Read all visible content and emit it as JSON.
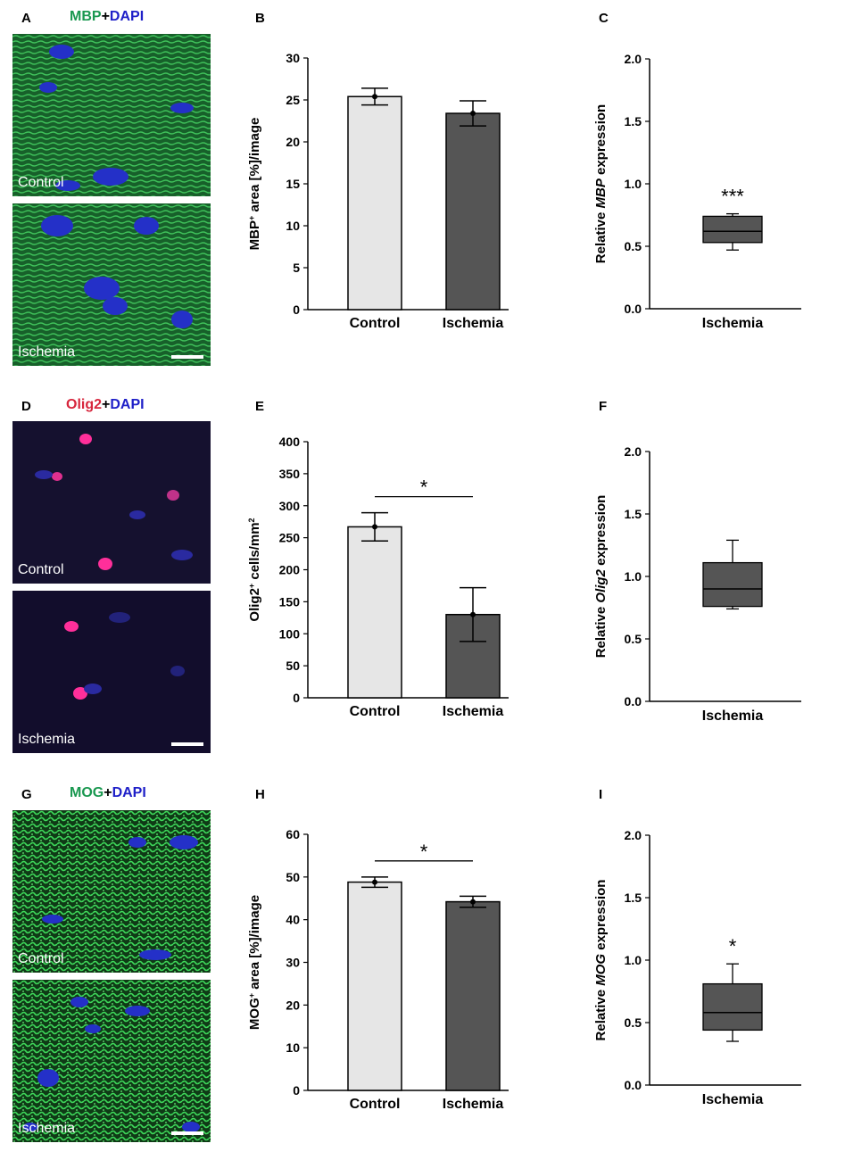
{
  "panels": {
    "A": {
      "letter": "A",
      "stain": {
        "marker": "MBP",
        "marker_color": "#1a9850",
        "plus": "+",
        "dapi": "DAPI"
      },
      "top_caption": "Control",
      "bottom_caption": "Ischemia",
      "tint": "#1e8f3e"
    },
    "D": {
      "letter": "D",
      "stain": {
        "marker": "Olig2",
        "marker_color": "#d7263d",
        "plus": "+",
        "dapi": "DAPI"
      },
      "top_caption": "Control",
      "bottom_caption": "Ischemia",
      "tint": "#1a1240"
    },
    "G": {
      "letter": "G",
      "stain": {
        "marker": "MOG",
        "marker_color": "#1a9850",
        "plus": "+",
        "dapi": "DAPI"
      },
      "top_caption": "Control",
      "bottom_caption": "Ischemia",
      "tint": "#1fa83a"
    },
    "B": {
      "letter": "B"
    },
    "C": {
      "letter": "C"
    },
    "E": {
      "letter": "E"
    },
    "F": {
      "letter": "F"
    },
    "H": {
      "letter": "H"
    },
    "I": {
      "letter": "I"
    }
  },
  "chart_data": [
    {
      "id": "B",
      "type": "bar",
      "categories": [
        "Control",
        "Ischemia"
      ],
      "values": [
        25.4,
        23.4
      ],
      "errors": [
        1.0,
        1.5
      ],
      "ylabel": "MBP+ area [%]/image",
      "ylim": [
        0,
        30
      ],
      "yticks": [
        0,
        5,
        10,
        15,
        20,
        25,
        30
      ],
      "significance": "",
      "colors": [
        "#e6e6e6",
        "#555555"
      ]
    },
    {
      "id": "C",
      "type": "box",
      "category": "Ischemia",
      "box": {
        "min": 0.47,
        "q1": 0.53,
        "median": 0.62,
        "q3": 0.74,
        "max": 0.76
      },
      "ylabel_prefix": "Relative ",
      "ylabel_gene": "MBP",
      "ylabel_suffix": " expression",
      "ylim": [
        0,
        2.0
      ],
      "yticks": [
        "0.0",
        "0.5",
        "1.0",
        "1.5",
        "2.0"
      ],
      "significance": "***"
    },
    {
      "id": "E",
      "type": "bar",
      "categories": [
        "Control",
        "Ischemia"
      ],
      "values": [
        267,
        130
      ],
      "errors": [
        22,
        42
      ],
      "ylabel": "Olig2+ cells/mm2",
      "ylim": [
        0,
        400
      ],
      "yticks": [
        0,
        50,
        100,
        150,
        200,
        250,
        300,
        350,
        400
      ],
      "significance": "*",
      "colors": [
        "#e6e6e6",
        "#555555"
      ]
    },
    {
      "id": "F",
      "type": "box",
      "category": "Ischemia",
      "box": {
        "min": 0.74,
        "q1": 0.76,
        "median": 0.9,
        "q3": 1.11,
        "max": 1.29
      },
      "ylabel_prefix": "Relative ",
      "ylabel_gene": "Olig2",
      "ylabel_suffix": " expression",
      "ylim": [
        0,
        2.0
      ],
      "yticks": [
        "0.0",
        "0.5",
        "1.0",
        "1.5",
        "2.0"
      ],
      "significance": ""
    },
    {
      "id": "H",
      "type": "bar",
      "categories": [
        "Control",
        "Ischemia"
      ],
      "values": [
        48.8,
        44.2
      ],
      "errors": [
        1.2,
        1.3
      ],
      "ylabel": "MOG+ area [%]/image",
      "ylim": [
        0,
        60
      ],
      "yticks": [
        0,
        10,
        20,
        30,
        40,
        50,
        60
      ],
      "significance": "*",
      "colors": [
        "#e6e6e6",
        "#555555"
      ]
    },
    {
      "id": "I",
      "type": "box",
      "category": "Ischemia",
      "box": {
        "min": 0.35,
        "q1": 0.44,
        "median": 0.58,
        "q3": 0.81,
        "max": 0.97
      },
      "ylabel_prefix": "Relative ",
      "ylabel_gene": "MOG",
      "ylabel_suffix": " expression",
      "ylim": [
        0,
        2.0
      ],
      "yticks": [
        "0.0",
        "0.5",
        "1.0",
        "1.5",
        "2.0"
      ],
      "significance": "*"
    }
  ]
}
